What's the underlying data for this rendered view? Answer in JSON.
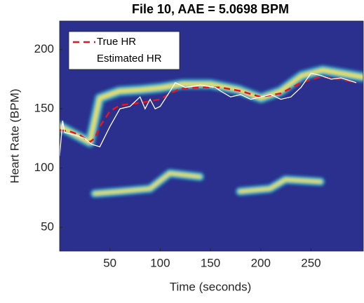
{
  "chart_data": {
    "type": "line",
    "title": "File 10, AAE = 5.0698 BPM",
    "xlabel": "Time (seconds)",
    "ylabel": "Heart Rate (BPM)",
    "xlim": [
      0,
      302
    ],
    "ylim": [
      30,
      224
    ],
    "xticks": [
      50,
      100,
      150,
      200,
      250
    ],
    "yticks": [
      50,
      100,
      150,
      200
    ],
    "legend": "upper left",
    "series": [
      {
        "name": "True HR",
        "color": "#e8141e",
        "dash": true,
        "x": [
          0,
          10,
          20,
          30,
          35,
          40,
          50,
          60,
          80,
          100,
          110,
          120,
          140,
          160,
          180,
          200,
          220,
          240,
          260,
          280,
          295
        ],
        "values": [
          132,
          131,
          128,
          122,
          125,
          135,
          148,
          153,
          155,
          158,
          163,
          167,
          168,
          168,
          165,
          160,
          163,
          172,
          177,
          175,
          172
        ]
      },
      {
        "name": "Estimated HR",
        "color": "#ffffff",
        "dash": false,
        "x": [
          0,
          3,
          5,
          15,
          25,
          32,
          40,
          50,
          60,
          70,
          80,
          85,
          90,
          95,
          100,
          110,
          115,
          125,
          140,
          155,
          160,
          170,
          180,
          190,
          200,
          210,
          220,
          230,
          240,
          250,
          260,
          270,
          280,
          295
        ],
        "values": [
          110,
          140,
          130,
          128,
          125,
          120,
          118,
          135,
          150,
          152,
          160,
          150,
          158,
          150,
          152,
          165,
          172,
          168,
          170,
          168,
          165,
          160,
          162,
          158,
          160,
          162,
          158,
          160,
          168,
          180,
          178,
          175,
          176,
          172
        ]
      }
    ]
  }
}
